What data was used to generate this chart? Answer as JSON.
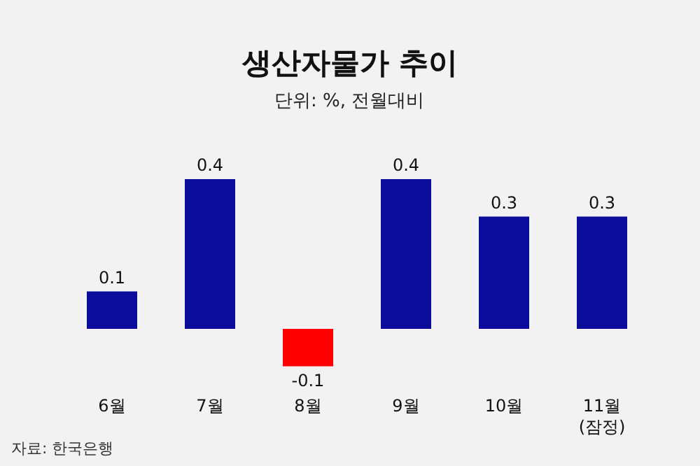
{
  "chart_data": {
    "type": "bar",
    "title": "생산자물가 추이",
    "subtitle": "단위: %, 전월대비",
    "categories": [
      "6월",
      "7월",
      "8월",
      "9월",
      "10월",
      "11월\n(잠정)"
    ],
    "values": [
      0.1,
      0.4,
      -0.1,
      0.4,
      0.3,
      0.3
    ],
    "colors": [
      "#0c0c9c",
      "#0c0c9c",
      "#ff0000",
      "#0c0c9c",
      "#0c0c9c",
      "#0c0c9c"
    ],
    "data_labels": true,
    "annotations": [
      "자료: 한국은행"
    ]
  }
}
